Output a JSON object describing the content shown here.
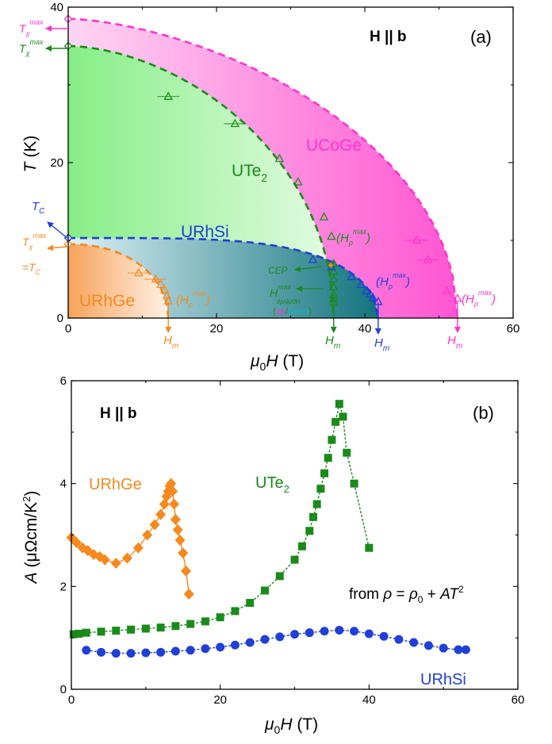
{
  "chart_data": [
    {
      "type": "scatter",
      "panel_label": "(a)",
      "field_label": "H || b",
      "xlabel": "μ0H (T)",
      "ylabel": "T (K)",
      "xlim": [
        0,
        60
      ],
      "ylim": [
        0,
        40
      ],
      "xticks": [
        0,
        20,
        40,
        60
      ],
      "yticks": [
        0,
        20,
        40
      ],
      "series": [
        {
          "name": "UCoGe",
          "color": "#ff33cc",
          "x": [
            0,
            47,
            48.5,
            51,
            52.5
          ],
          "y": [
            38.5,
            10,
            7.5,
            3.5,
            2.5
          ]
        },
        {
          "name": "UTe2",
          "color": "#1a8a1a",
          "x": [
            0,
            13.5,
            22.5,
            28.5,
            31,
            34.5,
            35.5,
            35.8,
            35.8,
            35.8,
            35.8,
            35.8,
            35.8,
            35.8
          ],
          "y": [
            35,
            28.5,
            25,
            20.5,
            17.5,
            13,
            10.5,
            7,
            6,
            5,
            4,
            3,
            2.5,
            2
          ]
        },
        {
          "name": "URhSi",
          "color": "#1f3fd6",
          "x": [
            0,
            33,
            35.5,
            38.2,
            39.5,
            40.2,
            40.7,
            41.1,
            41.8
          ],
          "y": [
            10.3,
            7.5,
            6.6,
            5.3,
            4.3,
            3.5,
            3.1,
            2.6,
            2.1
          ]
        },
        {
          "name": "URhGe",
          "color": "#f5891e",
          "x": [
            0,
            9.5,
            11.8,
            12.5,
            13,
            13.3,
            13.5
          ],
          "y": [
            9.5,
            5.8,
            5,
            4.3,
            3.6,
            2.9,
            2.2
          ]
        }
      ],
      "annotations": {
        "t_max_magenta": "T",
        "t_max_magenta_sub": "χ",
        "t_max_magenta_sup": "max",
        "t_max_green": "T",
        "t_max_green_sub": "χ",
        "t_max_green_sup": "max",
        "tc_blue": "T",
        "tc_blue_sub": "C",
        "t_max_orange": "T",
        "t_max_orange_sub": "χ",
        "t_max_orange_sup": "max",
        "eq_tc": "=T",
        "eq_tc_sub": "C",
        "ucoge": "UCoGe",
        "ute2": "UTe",
        "ute2_sub": "2",
        "urhsi": "URhSi",
        "urhge": "URhGe",
        "h_rho": "(H",
        "h_rho_sub": "ρ",
        "h_rho_sup": "max",
        "h_rho_close": ")",
        "cep": "CEP",
        "h_deriv": "H",
        "h_deriv_sup": "max",
        "h_deriv_sub": "∂ρ/∂μ0H",
        "updown_open": "(",
        "up": "up",
        "slash": "/",
        "down": "down",
        "updown_close": ")",
        "hm": "H",
        "hm_sub": "m"
      },
      "colors": {
        "magenta": "#ff33cc",
        "green": "#1a8a1a",
        "blue": "#1f3fd6",
        "orange": "#f5891e",
        "up": "#ff33cc",
        "down": "#1ab0c8"
      }
    },
    {
      "type": "line",
      "panel_label": "(b)",
      "field_label": "H || b",
      "xlabel": "μ0H (T)",
      "ylabel": "A (μΩcm/K²)",
      "xlim": [
        0,
        60
      ],
      "ylim": [
        0,
        6
      ],
      "xticks": [
        0,
        20,
        40,
        60
      ],
      "yticks": [
        0,
        2,
        4,
        6
      ],
      "formula": "from ρ = ρ0 + AT²",
      "series": [
        {
          "name": "URhGe",
          "color": "#f5891e",
          "marker": "diamond",
          "x": [
            0,
            0.7,
            1.5,
            2.2,
            3,
            3.8,
            4.5,
            6,
            7.5,
            9,
            10.2,
            11.2,
            12,
            12.5,
            12.8,
            13,
            13.2,
            13.4,
            13.6,
            13.8,
            14,
            14.3,
            14.6,
            15,
            15.4,
            15.8
          ],
          "y": [
            2.95,
            2.85,
            2.75,
            2.7,
            2.62,
            2.58,
            2.52,
            2.45,
            2.55,
            2.75,
            3.0,
            3.2,
            3.4,
            3.6,
            3.75,
            3.85,
            3.95,
            4.0,
            3.85,
            3.6,
            3.3,
            3.1,
            2.9,
            2.65,
            2.3,
            1.85
          ]
        },
        {
          "name": "UTe2",
          "color": "#1a8a1a",
          "marker": "square",
          "x": [
            0.3,
            1,
            2,
            4,
            6,
            8,
            10,
            12,
            14,
            16,
            18,
            20,
            22,
            24,
            26,
            28,
            30,
            31,
            32,
            32.5,
            33,
            33.5,
            34,
            34.5,
            35,
            35.5,
            36,
            36.5,
            37,
            38,
            40
          ],
          "y": [
            1.07,
            1.08,
            1.1,
            1.12,
            1.14,
            1.16,
            1.18,
            1.2,
            1.23,
            1.27,
            1.32,
            1.4,
            1.52,
            1.68,
            1.92,
            2.2,
            2.52,
            2.78,
            3.08,
            3.35,
            3.6,
            3.9,
            4.2,
            4.5,
            4.85,
            5.2,
            5.55,
            5.3,
            4.6,
            4.0,
            2.75
          ]
        },
        {
          "name": "URhSi",
          "color": "#1f3fd6",
          "marker": "circle",
          "x": [
            2,
            4,
            6,
            8,
            10,
            12,
            14,
            16,
            18,
            20,
            22,
            24,
            26,
            28,
            30,
            32,
            34,
            36,
            38,
            40,
            42,
            44,
            46,
            48,
            50,
            52,
            53
          ],
          "y": [
            0.76,
            0.72,
            0.7,
            0.7,
            0.71,
            0.72,
            0.74,
            0.76,
            0.79,
            0.82,
            0.86,
            0.91,
            0.97,
            1.02,
            1.07,
            1.1,
            1.13,
            1.15,
            1.13,
            1.08,
            1.03,
            0.97,
            0.91,
            0.85,
            0.8,
            0.77,
            0.77
          ]
        }
      ]
    }
  ]
}
